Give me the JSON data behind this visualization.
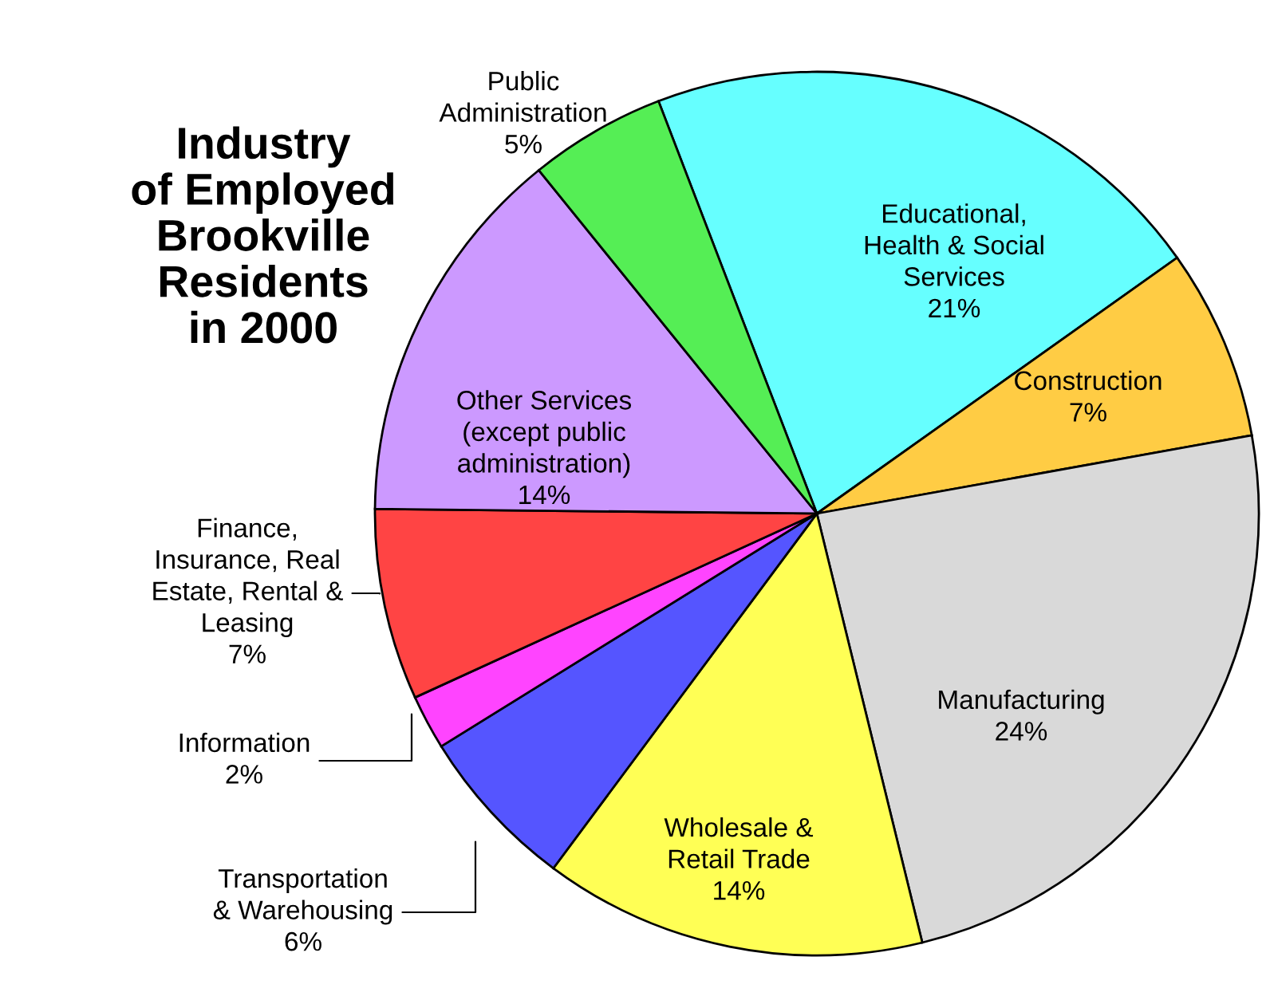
{
  "chart_data": {
    "type": "pie",
    "title": "Industry\nof Employed\nBrookville\nResidents\nin 2000",
    "categories": [
      "Educational,\nHealth & Social\nServices",
      "Construction",
      "Manufacturing",
      "Wholesale &\nRetail Trade",
      "Transportation\n& Warehousing",
      "Information",
      "Finance,\nInsurance, Real\nEstate, Rental &\nLeasing",
      "Other Services\n(except public\nadministration)",
      "Public\nAdministration"
    ],
    "values": [
      21,
      7,
      24,
      14,
      6,
      2,
      7,
      14,
      5
    ],
    "colors": [
      "#66ffff",
      "#ffcc44",
      "#d9d9d9",
      "#ffff55",
      "#5555ff",
      "#ff44ff",
      "#ff4444",
      "#cc99ff",
      "#55ee55"
    ],
    "value_labels": [
      "21%",
      "7%",
      "24%",
      "14%",
      "6%",
      "2%",
      "7%",
      "14%",
      "5%"
    ],
    "legend": false
  }
}
